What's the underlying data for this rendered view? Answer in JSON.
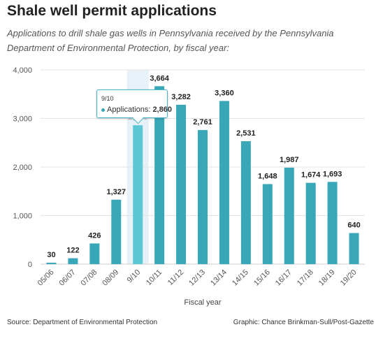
{
  "title": "Shale well permit applications",
  "subtitle": "Applications to drill shale gas wells in Pennsylvania received by the Pennsylvania Department of Environmental Protection, by fiscal year:",
  "source": "Source: Department of Environmental Protection",
  "credit": "Graphic: Chance Brinkman-Sull/Post-Gazette",
  "colors": {
    "bar": "#38a8b8",
    "bar_highlight": "#5cc8d6",
    "highlight_band": "#e6f1f8",
    "grid": "#e3e3e3"
  },
  "tooltip": {
    "category": "9/10",
    "series_label": "Applications:",
    "value": "2,860",
    "dot_icon": "bullet-dot-icon",
    "color": "#38a8b8"
  },
  "chart_data": {
    "type": "bar",
    "title": "",
    "xlabel": "Fiscal year",
    "ylabel": "",
    "ylim": [
      0,
      4000
    ],
    "yticks": [
      0,
      1000,
      2000,
      3000,
      4000
    ],
    "ytick_labels": [
      "0",
      "1,000",
      "2,000",
      "3,000",
      "4,000"
    ],
    "grid": true,
    "categories": [
      "05/06",
      "06/07",
      "07/08",
      "08/09",
      "9/10",
      "10/11",
      "11/12",
      "12/13",
      "13/14",
      "14/15",
      "15/16",
      "16/17",
      "17/18",
      "18/19",
      "19/20"
    ],
    "values": [
      30,
      122,
      426,
      1327,
      2860,
      3664,
      3282,
      2761,
      3360,
      2531,
      1648,
      1987,
      1674,
      1693,
      640
    ],
    "value_labels": [
      "30",
      "122",
      "426",
      "1,327",
      "2,860",
      "3,664",
      "3,282",
      "2,761",
      "3,360",
      "2,531",
      "1,648",
      "1,987",
      "1,674",
      "1,693",
      "640"
    ],
    "highlighted_index": 4
  }
}
